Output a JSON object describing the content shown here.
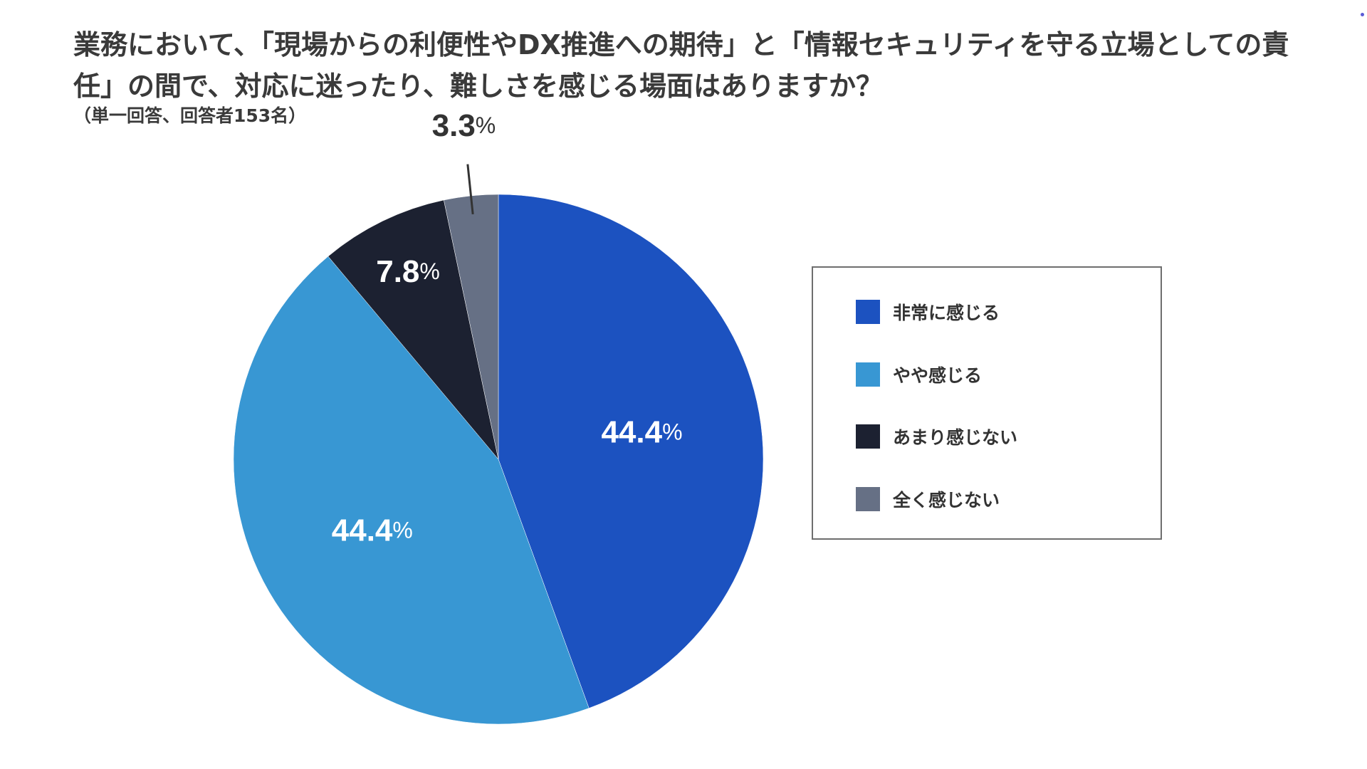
{
  "chart_data": {
    "type": "pie",
    "title": "業務において、「現場からの利便性やDX推進への期待」と「情報セキュリティを守る立場としての責任」の間で、対応に迷ったり、難しさを感じる場面はありますか？",
    "subtitle": "（単一回答、回答者153名）",
    "unit": "%",
    "slices": [
      {
        "label": "非常に感じる",
        "value": 44.4,
        "display": "44.4",
        "color": "#1c52c0",
        "text_color": "#ffffff"
      },
      {
        "label": "やや感じる",
        "value": 44.4,
        "display": "44.4",
        "color": "#3897d3",
        "text_color": "#ffffff"
      },
      {
        "label": "あまり感じない",
        "value": 7.8,
        "display": "7.8",
        "color": "#1c2131",
        "text_color": "#ffffff"
      },
      {
        "label": "全く感じない",
        "value": 3.3,
        "display": "3.3",
        "color": "#667085",
        "text_color": "#333333"
      }
    ],
    "legend_position": "right"
  },
  "colors": {
    "background": "#ffffff",
    "title": "#3a3a3a",
    "legend_border": "#6e6e6e"
  }
}
